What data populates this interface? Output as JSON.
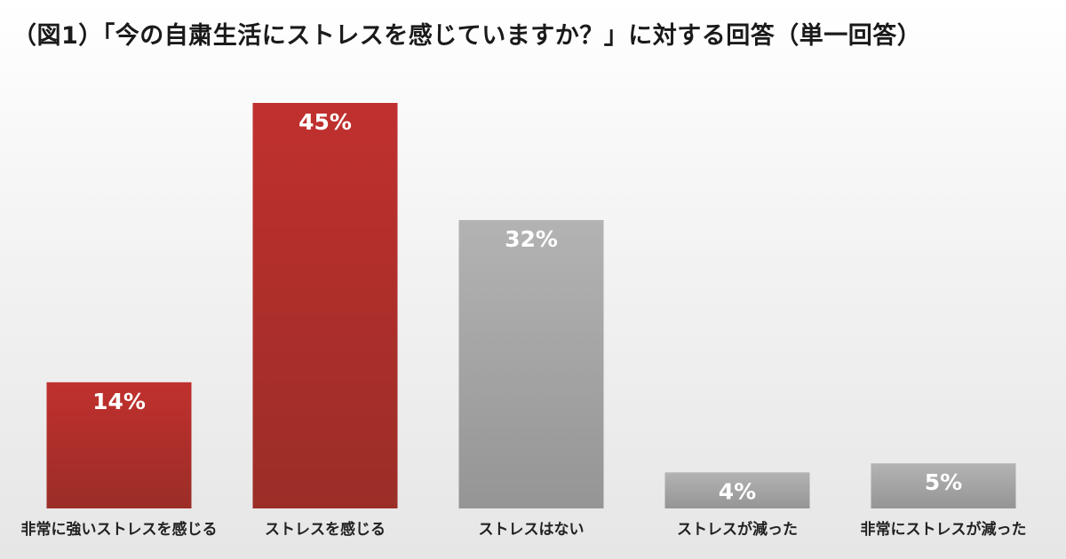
{
  "title": "（図1）「今の自粛生活にストレスを感じていますか？」に対する回答（単一回答）",
  "colors": {
    "stress_top": "#c0302e",
    "stress_bottom": "#9b2d27",
    "nostress_top": "#b3b3b3",
    "nostress_bottom": "#959595"
  },
  "chart_data": {
    "type": "bar",
    "title": "（図1）「今の自粛生活にストレスを感じていますか？」に対する回答（単一回答）",
    "categories": [
      "非常に強いストレスを感じる",
      "ストレスを感じる",
      "ストレスはない",
      "ストレスが減った",
      "非常にストレスが減った"
    ],
    "values": [
      14,
      45,
      32,
      4,
      5
    ],
    "value_labels": [
      "14%",
      "45%",
      "32%",
      "4%",
      "5%"
    ],
    "bar_colors": [
      "red",
      "red",
      "gray",
      "gray",
      "gray"
    ],
    "ylim": [
      0,
      45
    ],
    "grid": false
  }
}
